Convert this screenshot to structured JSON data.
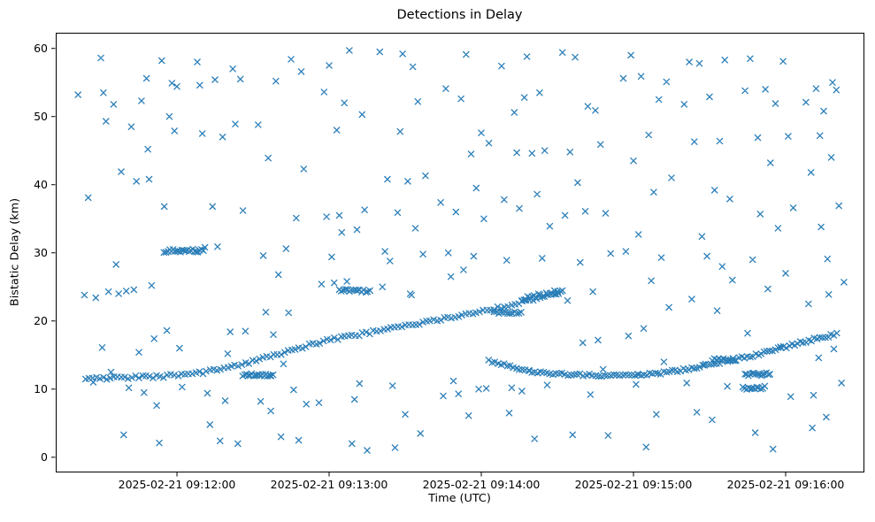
{
  "figure": {
    "title": "Detections in Delay",
    "xlabel": "Time (UTC)",
    "ylabel": "Bistatic Delay (km)"
  },
  "chart_data": {
    "type": "scatter",
    "title": "Detections in Delay",
    "xlabel": "Time (UTC)",
    "ylabel": "Bistatic Delay (km)",
    "marker": "x",
    "marker_color": "#1f77b4",
    "grid": false,
    "legend": "none",
    "x_unit": "seconds after 2025-02-21 09:11:00 UTC",
    "xlim": [
      12.2,
      330.7
    ],
    "ylim": [
      -2.1,
      62.3
    ],
    "x_ticks": [
      {
        "value": 60,
        "label": "2025-02-21 09:12:00"
      },
      {
        "value": 120,
        "label": "2025-02-21 09:13:00"
      },
      {
        "value": 180,
        "label": "2025-02-21 09:14:00"
      },
      {
        "value": 240,
        "label": "2025-02-21 09:15:00"
      },
      {
        "value": 300,
        "label": "2025-02-21 09:16:00"
      }
    ],
    "y_ticks": [
      {
        "value": 0,
        "label": "0"
      },
      {
        "value": 10,
        "label": "10"
      },
      {
        "value": 20,
        "label": "20"
      },
      {
        "value": 30,
        "label": "30"
      },
      {
        "value": 40,
        "label": "40"
      },
      {
        "value": 50,
        "label": "50"
      },
      {
        "value": 60,
        "label": "60"
      }
    ],
    "tracks": [
      {
        "name": "track-rising-main",
        "step": 1.4,
        "jitter": 0.22,
        "control": [
          [
            24,
            11.5
          ],
          [
            40,
            11.7
          ],
          [
            55,
            11.9
          ],
          [
            70,
            12.4
          ],
          [
            85,
            13.6
          ],
          [
            100,
            15.1
          ],
          [
            115,
            16.8
          ],
          [
            130,
            17.9
          ],
          [
            145,
            18.9
          ],
          [
            160,
            19.9
          ],
          [
            175,
            21.0
          ],
          [
            190,
            22.2
          ],
          [
            200,
            23.1
          ],
          [
            211,
            24.3
          ]
        ]
      },
      {
        "name": "track-rising-tail-upper",
        "step": 0.8,
        "jitter": 0.3,
        "control": [
          [
            196,
            23.2
          ],
          [
            212,
            24.4
          ]
        ]
      },
      {
        "name": "track-descending-flat",
        "step": 1.2,
        "jitter": 0.18,
        "control": [
          [
            183,
            14.2
          ],
          [
            192,
            13.2
          ],
          [
            200,
            12.6
          ],
          [
            210,
            12.2
          ],
          [
            225,
            12.0
          ],
          [
            242,
            12.1
          ]
        ]
      },
      {
        "name": "track-rising-late",
        "step": 1.1,
        "jitter": 0.2,
        "control": [
          [
            242,
            12.1
          ],
          [
            252,
            12.4
          ],
          [
            262,
            13.0
          ],
          [
            272,
            13.8
          ],
          [
            282,
            14.5
          ],
          [
            292,
            15.4
          ],
          [
            302,
            16.4
          ],
          [
            312,
            17.4
          ],
          [
            321,
            18.1
          ]
        ]
      },
      {
        "name": "segment-30km",
        "step": 0.7,
        "jitter": 0.25,
        "control": [
          [
            55,
            30.3
          ],
          [
            71,
            30.3
          ]
        ]
      },
      {
        "name": "segment-12km-early",
        "step": 0.7,
        "jitter": 0.2,
        "control": [
          [
            86,
            12.1
          ],
          [
            98,
            12.1
          ]
        ]
      },
      {
        "name": "segment-24km",
        "step": 0.8,
        "jitter": 0.2,
        "control": [
          [
            124,
            24.5
          ],
          [
            136,
            24.4
          ]
        ]
      },
      {
        "name": "segment-21km",
        "step": 0.9,
        "jitter": 0.2,
        "control": [
          [
            185,
            21.2
          ],
          [
            196,
            21.3
          ]
        ]
      },
      {
        "name": "segment-12km-late",
        "step": 0.7,
        "jitter": 0.25,
        "control": [
          [
            284,
            12.2
          ],
          [
            294,
            12.2
          ]
        ]
      },
      {
        "name": "segment-10km-late",
        "step": 0.8,
        "jitter": 0.25,
        "control": [
          [
            283,
            10.1
          ],
          [
            292,
            10.2
          ]
        ]
      },
      {
        "name": "segment-14km-late",
        "step": 0.9,
        "jitter": 0.2,
        "control": [
          [
            271,
            14.3
          ],
          [
            280,
            14.3
          ]
        ]
      }
    ],
    "clutter": [
      [
        21,
        53.2
      ],
      [
        23.5,
        23.8
      ],
      [
        25,
        38.1
      ],
      [
        27,
        11.0
      ],
      [
        28,
        23.4
      ],
      [
        30,
        58.6
      ],
      [
        30.5,
        16.1
      ],
      [
        31,
        53.5
      ],
      [
        32,
        49.3
      ],
      [
        33,
        24.3
      ],
      [
        34,
        12.5
      ],
      [
        35,
        51.8
      ],
      [
        36,
        28.3
      ],
      [
        37,
        24.0
      ],
      [
        38,
        41.9
      ],
      [
        39,
        3.3
      ],
      [
        40,
        24.4
      ],
      [
        41,
        10.2
      ],
      [
        42,
        48.5
      ],
      [
        43,
        24.6
      ],
      [
        44,
        40.5
      ],
      [
        45,
        15.4
      ],
      [
        46,
        52.3
      ],
      [
        47,
        9.5
      ],
      [
        48,
        55.6
      ],
      [
        48.5,
        45.2
      ],
      [
        49,
        40.8
      ],
      [
        50,
        25.2
      ],
      [
        51,
        17.4
      ],
      [
        52,
        7.6
      ],
      [
        53,
        2.1
      ],
      [
        54,
        58.2
      ],
      [
        55,
        36.8
      ],
      [
        56,
        18.6
      ],
      [
        57,
        50.0
      ],
      [
        58,
        54.9
      ],
      [
        59,
        47.9
      ],
      [
        60,
        54.4
      ],
      [
        61,
        16.0
      ],
      [
        62,
        10.3
      ],
      [
        68,
        58.0
      ],
      [
        69,
        54.6
      ],
      [
        70,
        47.5
      ],
      [
        71,
        30.8
      ],
      [
        72,
        9.4
      ],
      [
        73,
        4.8
      ],
      [
        74,
        36.8
      ],
      [
        75,
        55.4
      ],
      [
        76,
        30.9
      ],
      [
        77,
        2.4
      ],
      [
        78,
        47.0
      ],
      [
        79,
        8.3
      ],
      [
        80,
        15.2
      ],
      [
        81,
        18.4
      ],
      [
        82,
        57.0
      ],
      [
        83,
        48.9
      ],
      [
        84,
        2.0
      ],
      [
        85,
        55.5
      ],
      [
        86,
        36.2
      ],
      [
        87,
        18.5
      ],
      [
        92,
        48.8
      ],
      [
        93,
        8.2
      ],
      [
        94,
        29.6
      ],
      [
        95,
        21.3
      ],
      [
        96,
        43.9
      ],
      [
        97,
        6.8
      ],
      [
        98,
        18.0
      ],
      [
        99,
        55.2
      ],
      [
        100,
        26.8
      ],
      [
        101,
        3.0
      ],
      [
        102,
        13.7
      ],
      [
        103,
        30.6
      ],
      [
        104,
        21.2
      ],
      [
        105,
        58.4
      ],
      [
        106,
        9.9
      ],
      [
        107,
        35.1
      ],
      [
        108,
        2.5
      ],
      [
        109,
        56.6
      ],
      [
        110,
        42.3
      ],
      [
        111,
        7.8
      ],
      [
        116,
        8.0
      ],
      [
        117,
        25.4
      ],
      [
        118,
        53.6
      ],
      [
        119,
        35.3
      ],
      [
        120,
        57.5
      ],
      [
        121,
        29.4
      ],
      [
        122,
        25.6
      ],
      [
        123,
        48.0
      ],
      [
        124,
        35.5
      ],
      [
        125,
        33.0
      ],
      [
        126,
        52.0
      ],
      [
        127,
        25.8
      ],
      [
        128,
        59.7
      ],
      [
        129,
        2.0
      ],
      [
        130,
        8.5
      ],
      [
        131,
        33.4
      ],
      [
        132,
        10.8
      ],
      [
        133,
        50.3
      ],
      [
        134,
        36.3
      ],
      [
        135,
        1.0
      ],
      [
        140,
        59.5
      ],
      [
        141,
        25.0
      ],
      [
        142,
        30.2
      ],
      [
        143,
        40.8
      ],
      [
        144,
        28.8
      ],
      [
        145,
        10.5
      ],
      [
        146,
        1.4
      ],
      [
        147,
        35.9
      ],
      [
        148,
        47.8
      ],
      [
        149,
        59.2
      ],
      [
        150,
        6.3
      ],
      [
        151,
        40.5
      ],
      [
        152,
        24.0
      ],
      [
        152.5,
        23.8
      ],
      [
        153,
        57.3
      ],
      [
        154,
        33.6
      ],
      [
        155,
        52.2
      ],
      [
        156,
        3.5
      ],
      [
        157,
        29.8
      ],
      [
        158,
        41.3
      ],
      [
        164,
        37.4
      ],
      [
        165,
        9.0
      ],
      [
        166,
        54.1
      ],
      [
        167,
        30.0
      ],
      [
        168,
        26.5
      ],
      [
        169,
        11.2
      ],
      [
        170,
        36.0
      ],
      [
        171,
        9.3
      ],
      [
        172,
        52.6
      ],
      [
        173,
        27.5
      ],
      [
        174,
        59.1
      ],
      [
        175,
        6.1
      ],
      [
        176,
        44.5
      ],
      [
        177,
        29.5
      ],
      [
        178,
        39.5
      ],
      [
        179,
        10.0
      ],
      [
        180,
        47.6
      ],
      [
        181,
        35.0
      ],
      [
        182,
        10.1
      ],
      [
        183,
        46.1
      ],
      [
        188,
        57.4
      ],
      [
        189,
        37.8
      ],
      [
        190,
        28.9
      ],
      [
        191,
        6.5
      ],
      [
        192,
        10.2
      ],
      [
        193,
        50.6
      ],
      [
        194,
        44.7
      ],
      [
        195,
        36.5
      ],
      [
        196,
        9.7
      ],
      [
        197,
        52.8
      ],
      [
        198,
        58.8
      ],
      [
        199,
        12.7
      ],
      [
        200,
        44.6
      ],
      [
        201,
        2.7
      ],
      [
        202,
        38.6
      ],
      [
        203,
        53.5
      ],
      [
        204,
        29.2
      ],
      [
        205,
        45.0
      ],
      [
        206,
        10.6
      ],
      [
        207,
        33.9
      ],
      [
        212,
        59.4
      ],
      [
        213,
        35.5
      ],
      [
        214,
        23.0
      ],
      [
        215,
        44.8
      ],
      [
        216,
        3.3
      ],
      [
        217,
        58.7
      ],
      [
        218,
        40.3
      ],
      [
        219,
        28.6
      ],
      [
        220,
        16.8
      ],
      [
        221,
        36.1
      ],
      [
        222,
        51.5
      ],
      [
        223,
        9.2
      ],
      [
        224,
        24.3
      ],
      [
        225,
        50.9
      ],
      [
        226,
        17.2
      ],
      [
        227,
        45.9
      ],
      [
        228,
        12.9
      ],
      [
        229,
        35.8
      ],
      [
        230,
        3.2
      ],
      [
        231,
        29.9
      ],
      [
        236,
        55.6
      ],
      [
        237,
        30.2
      ],
      [
        238,
        17.8
      ],
      [
        239,
        59.0
      ],
      [
        240,
        43.5
      ],
      [
        241,
        10.7
      ],
      [
        242,
        32.7
      ],
      [
        243,
        55.9
      ],
      [
        244,
        18.9
      ],
      [
        245,
        1.5
      ],
      [
        246,
        47.3
      ],
      [
        247,
        25.9
      ],
      [
        248,
        38.9
      ],
      [
        249,
        6.3
      ],
      [
        250,
        52.5
      ],
      [
        251,
        29.3
      ],
      [
        252,
        14.0
      ],
      [
        253,
        55.1
      ],
      [
        254,
        22.0
      ],
      [
        255,
        41.0
      ],
      [
        260,
        51.8
      ],
      [
        261,
        10.9
      ],
      [
        262,
        58.0
      ],
      [
        263,
        23.2
      ],
      [
        264,
        46.3
      ],
      [
        265,
        6.6
      ],
      [
        266,
        57.8
      ],
      [
        267,
        32.4
      ],
      [
        268,
        13.5
      ],
      [
        269,
        29.5
      ],
      [
        270,
        52.9
      ],
      [
        271,
        5.5
      ],
      [
        272,
        39.2
      ],
      [
        273,
        21.5
      ],
      [
        274,
        46.4
      ],
      [
        275,
        28.0
      ],
      [
        276,
        58.3
      ],
      [
        277,
        10.4
      ],
      [
        278,
        37.9
      ],
      [
        279,
        26.0
      ],
      [
        284,
        53.8
      ],
      [
        285,
        18.2
      ],
      [
        286,
        58.5
      ],
      [
        287,
        29.0
      ],
      [
        288,
        3.6
      ],
      [
        289,
        46.9
      ],
      [
        290,
        35.7
      ],
      [
        291,
        12.2
      ],
      [
        292,
        54.0
      ],
      [
        293,
        24.7
      ],
      [
        294,
        43.2
      ],
      [
        295,
        1.2
      ],
      [
        296,
        51.9
      ],
      [
        297,
        33.6
      ],
      [
        298,
        16.2
      ],
      [
        299,
        58.1
      ],
      [
        300,
        27.0
      ],
      [
        301,
        47.1
      ],
      [
        302,
        8.9
      ],
      [
        303,
        36.6
      ],
      [
        308,
        52.1
      ],
      [
        309,
        22.5
      ],
      [
        310,
        41.8
      ],
      [
        311,
        9.1
      ],
      [
        312,
        54.1
      ],
      [
        313,
        14.6
      ],
      [
        314,
        33.8
      ],
      [
        315,
        50.8
      ],
      [
        316,
        5.9
      ],
      [
        317,
        23.9
      ],
      [
        318,
        44.0
      ],
      [
        319,
        15.9
      ],
      [
        320,
        53.9
      ],
      [
        321,
        36.9
      ],
      [
        322,
        10.9
      ],
      [
        323,
        25.7
      ],
      [
        318.5,
        55.0
      ],
      [
        316.5,
        29.1
      ],
      [
        313.5,
        47.2
      ],
      [
        310.5,
        4.3
      ]
    ]
  }
}
